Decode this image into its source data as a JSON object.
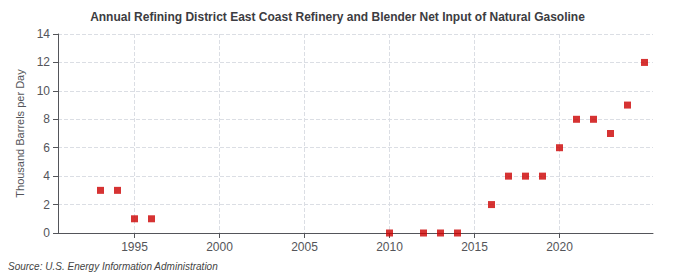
{
  "chart_data": {
    "type": "scatter",
    "title": "Annual Refining District East Coast Refinery and Blender Net Input of Natural Gasoline",
    "ylabel": "Thousand Barrels per Day",
    "annotations": [
      "Source: U.S. Energy Information Administration"
    ],
    "x": [
      1993,
      1994,
      1995,
      1996,
      2010,
      2012,
      2013,
      2014,
      2016,
      2017,
      2018,
      2019,
      2020,
      2021,
      2022,
      2023,
      2024,
      2025
    ],
    "values": [
      3,
      3,
      1,
      1,
      0,
      0,
      0,
      0,
      2,
      4,
      4,
      4,
      6,
      8,
      8,
      7,
      9,
      12
    ],
    "color": "#cc0000",
    "marker": "square",
    "xlim": [
      1990.5,
      2025.5
    ],
    "ylim": [
      0,
      14
    ],
    "xticks": [
      1995,
      2000,
      2005,
      2010,
      2015,
      2020
    ],
    "yticks": [
      0,
      2,
      4,
      6,
      8,
      10,
      12,
      14
    ],
    "grid": true
  }
}
